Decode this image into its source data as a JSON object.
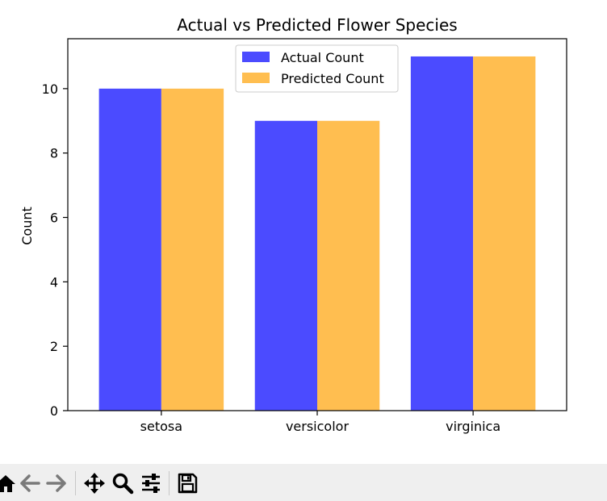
{
  "chart_data": {
    "type": "bar",
    "title": "Actual vs Predicted Flower Species",
    "xlabel": "",
    "ylabel": "Count",
    "categories": [
      "setosa",
      "versicolor",
      "virginica"
    ],
    "series": [
      {
        "name": "Actual Count",
        "values": [
          10,
          9,
          11
        ],
        "color": "#4B4BFF"
      },
      {
        "name": "Predicted Count",
        "values": [
          10,
          9,
          11
        ],
        "color": "#FFBE50"
      }
    ],
    "ylim": [
      0,
      11.55
    ],
    "yticks": [
      0,
      2,
      4,
      6,
      8,
      10
    ],
    "grid": false,
    "legend_position": "top-center"
  },
  "toolbar": {
    "buttons": [
      {
        "name": "home-button",
        "icon": "home-icon"
      },
      {
        "name": "back-button",
        "icon": "arrow-left-icon"
      },
      {
        "name": "forward-button",
        "icon": "arrow-right-icon"
      },
      {
        "name": "pan-button",
        "icon": "move-icon"
      },
      {
        "name": "zoom-button",
        "icon": "magnifier-icon"
      },
      {
        "name": "configure-subplots-button",
        "icon": "sliders-icon"
      },
      {
        "name": "save-button",
        "icon": "floppy-disk-icon"
      }
    ]
  }
}
